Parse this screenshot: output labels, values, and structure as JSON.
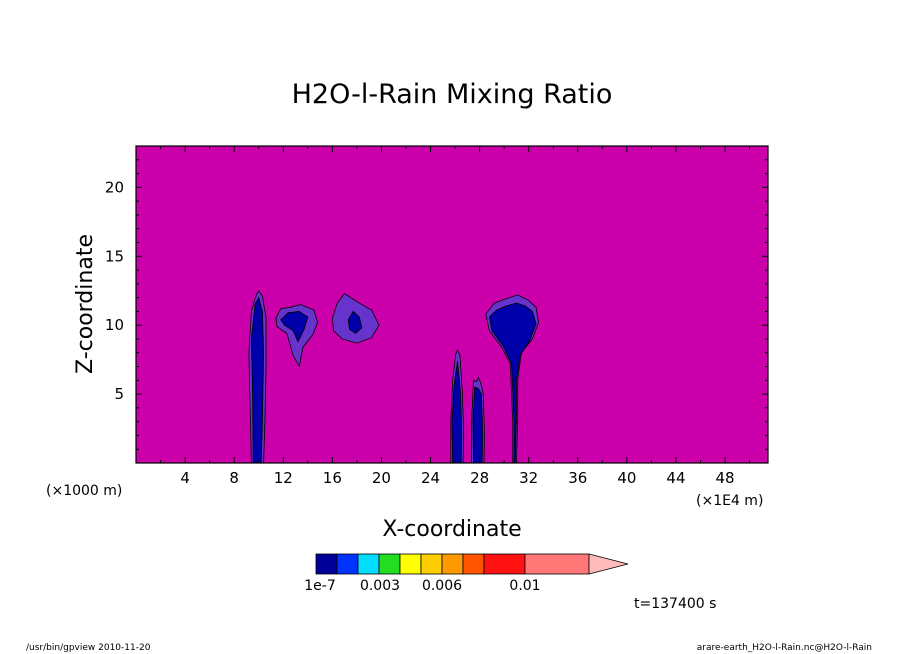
{
  "chart_data": {
    "type": "heatmap",
    "title": "H2O-l-Rain Mixing Ratio",
    "xlabel": "X-coordinate",
    "ylabel": "Z-coordinate",
    "x_unit_left": "(×1000 m)",
    "x_unit_right": "(×1E4 m)",
    "xlim": [
      0,
      51.5
    ],
    "ylim": [
      0,
      23
    ],
    "x_ticks": [
      4,
      8,
      12,
      16,
      20,
      24,
      28,
      32,
      36,
      40,
      44,
      48
    ],
    "y_ticks": [
      5,
      10,
      15,
      20
    ],
    "background_level_color": "#cc00aa",
    "colorbar": {
      "labels": [
        "1e-7",
        "0.003",
        "0.006",
        "0.01"
      ],
      "colors": [
        "#000099",
        "#0033ff",
        "#00ddff",
        "#22dd22",
        "#ffff00",
        "#ffcc00",
        "#ff9900",
        "#ff5500",
        "#ff1111",
        "#ff7777",
        "#ffbbbb"
      ]
    },
    "features": [
      {
        "name": "column",
        "x_center": 10.0,
        "z_base": 0,
        "z_top": 12.5
      },
      {
        "name": "cloud",
        "x_center": 13.0,
        "z_base": 7.0,
        "z_top": 11.5
      },
      {
        "name": "cloud",
        "x_center": 17.8,
        "z_base": 8.7,
        "z_top": 12.3
      },
      {
        "name": "column",
        "x_center": 26.2,
        "z_base": 0,
        "z_top": 8.2
      },
      {
        "name": "column",
        "x_center": 27.9,
        "z_base": 0,
        "z_top": 6.2
      },
      {
        "name": "anvil",
        "x_center": 30.8,
        "z_base": 0,
        "z_top": 12.2
      }
    ],
    "time_label": "t=137400 s"
  },
  "footer": {
    "left": "/usr/bin/gpview  2010-11-20",
    "right": "arare-earth_H2O-l-Rain.nc@H2O-l-Rain"
  },
  "colors": {
    "outline": "#000000",
    "blue_core": "#0000aa",
    "purple_edge": "#6633cc"
  }
}
